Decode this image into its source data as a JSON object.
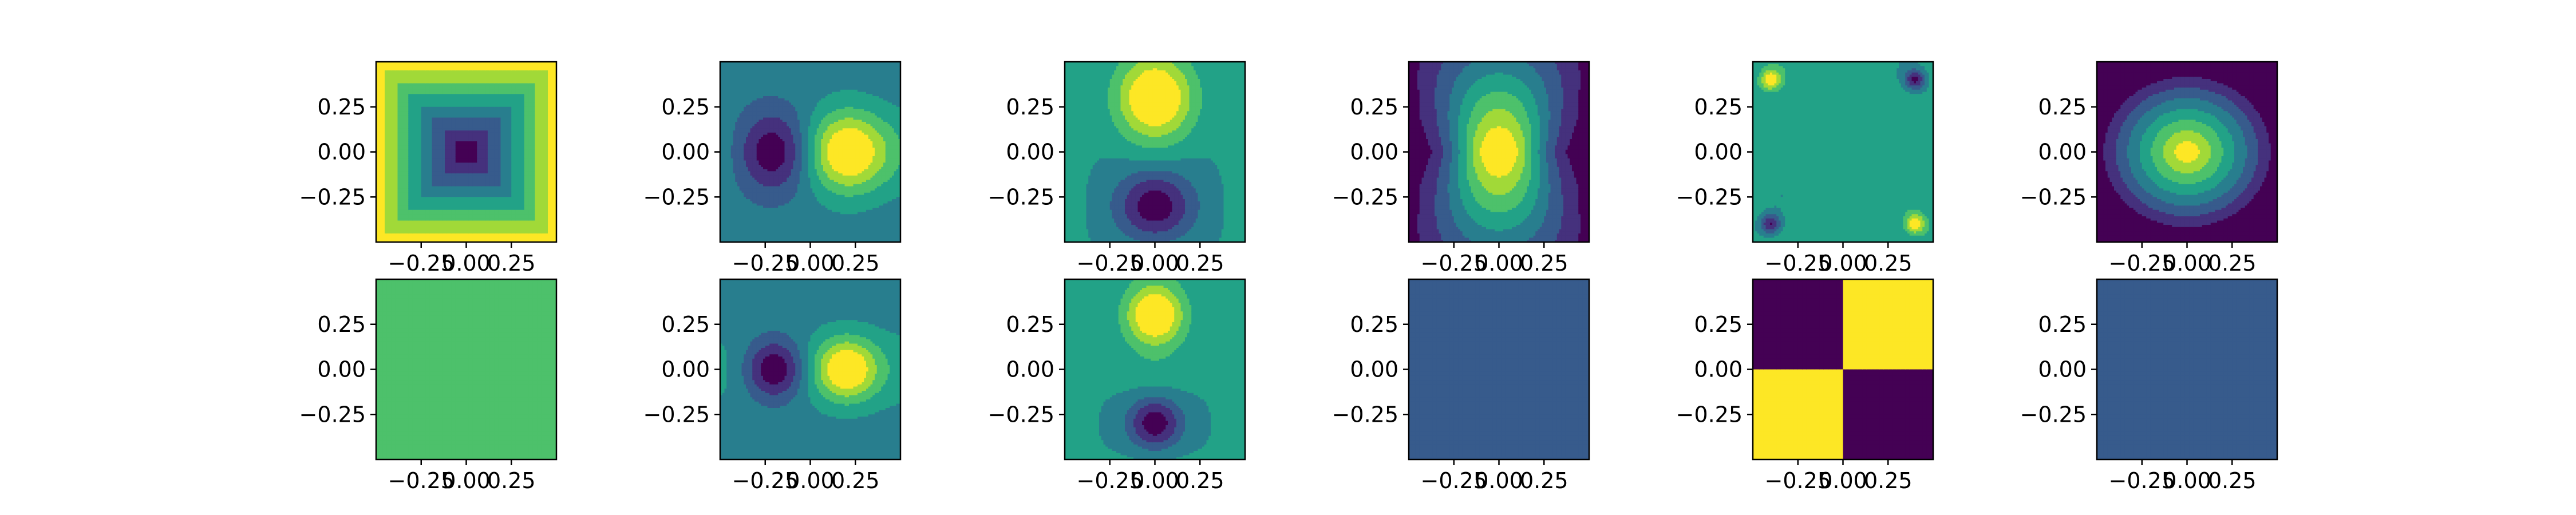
{
  "chart_data": {
    "type": "heatmap",
    "rows": 2,
    "cols": 6,
    "colormap": "viridis",
    "xlim": [
      -0.5,
      0.5
    ],
    "ylim": [
      -0.5,
      0.5
    ],
    "xticks": [
      -0.25,
      0.0,
      0.25
    ],
    "yticks": [
      -0.25,
      0.0,
      0.25
    ],
    "xtick_labels": [
      "−0.25",
      "0.00",
      "0.25"
    ],
    "ytick_labels": [
      "−0.25",
      "0.00",
      "0.25"
    ],
    "levels": 8,
    "panels": [
      {
        "row": 0,
        "col": 0,
        "pattern": "bowl",
        "description_note": ""
      },
      {
        "row": 0,
        "col": 1,
        "pattern": "lr_dipole"
      },
      {
        "row": 0,
        "col": 2,
        "pattern": "tb_dipole"
      },
      {
        "row": 0,
        "col": 3,
        "pattern": "hourglass"
      },
      {
        "row": 0,
        "col": 4,
        "pattern": "corners_noise"
      },
      {
        "row": 0,
        "col": 5,
        "pattern": "dome"
      },
      {
        "row": 1,
        "col": 0,
        "pattern": "flat_bright"
      },
      {
        "row": 1,
        "col": 1,
        "pattern": "lr_dipole_sharp"
      },
      {
        "row": 1,
        "col": 2,
        "pattern": "tb_dipole_sharp"
      },
      {
        "row": 1,
        "col": 3,
        "pattern": "flat_dark"
      },
      {
        "row": 1,
        "col": 4,
        "pattern": "checker"
      },
      {
        "row": 1,
        "col": 5,
        "pattern": "flat_dark"
      }
    ]
  }
}
